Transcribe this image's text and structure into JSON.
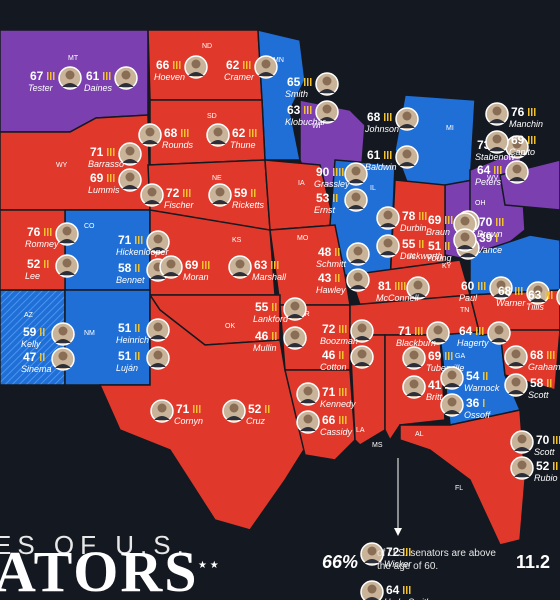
{
  "title": {
    "line1": "ES OF U.S.",
    "line2": "ATORS",
    "stars": "★ ★"
  },
  "stats": {
    "percent": "66%",
    "caption": "of U.S. senators are above the age of 60.",
    "secondary": "11.2"
  },
  "colors": {
    "republican": "#e0392b",
    "democrat": "#1f6fd6",
    "split": "#7b3fb0",
    "independent": "#4b95f0",
    "background": "#141820",
    "tick": "#f2c230"
  },
  "states": [
    {
      "abbr": "MT",
      "party": "split"
    },
    {
      "abbr": "ND",
      "party": "republican"
    },
    {
      "abbr": "MN",
      "party": "democrat"
    },
    {
      "abbr": "SD",
      "party": "republican"
    },
    {
      "abbr": "WI",
      "party": "split"
    },
    {
      "abbr": "MI",
      "party": "democrat"
    },
    {
      "abbr": "WY",
      "party": "republican"
    },
    {
      "abbr": "NE",
      "party": "republican"
    },
    {
      "abbr": "IA",
      "party": "republican"
    },
    {
      "abbr": "IL",
      "party": "democrat"
    },
    {
      "abbr": "OH",
      "party": "split"
    },
    {
      "abbr": "WV",
      "party": "split"
    },
    {
      "abbr": "CO",
      "party": "democrat"
    },
    {
      "abbr": "KS",
      "party": "republican"
    },
    {
      "abbr": "MO",
      "party": "republican"
    },
    {
      "abbr": "IN",
      "party": "republican"
    },
    {
      "abbr": "KY",
      "party": "republican"
    },
    {
      "abbr": "OK",
      "party": "republican"
    },
    {
      "abbr": "AR",
      "party": "republican"
    },
    {
      "abbr": "TN",
      "party": "republican"
    },
    {
      "abbr": "AZ",
      "party": "independent"
    },
    {
      "abbr": "NM",
      "party": "democrat"
    },
    {
      "abbr": "TX",
      "party": "republican"
    },
    {
      "abbr": "LA",
      "party": "republican"
    },
    {
      "abbr": "MS",
      "party": "republican"
    },
    {
      "abbr": "AL",
      "party": "republican"
    },
    {
      "abbr": "GA",
      "party": "democrat"
    },
    {
      "abbr": "FL",
      "party": "republican"
    }
  ],
  "senators": [
    {
      "name": "Tester",
      "age": "67",
      "state": "MT",
      "party": "democrat"
    },
    {
      "name": "Daines",
      "age": "61",
      "state": "MT",
      "party": "republican"
    },
    {
      "name": "Hoeven",
      "age": "66",
      "state": "ND",
      "party": "republican"
    },
    {
      "name": "Cramer",
      "age": "62",
      "state": "ND",
      "party": "republican"
    },
    {
      "name": "Smith",
      "age": "65",
      "state": "MN",
      "party": "democrat"
    },
    {
      "name": "Klobuchar",
      "age": "63",
      "state": "MN",
      "party": "democrat"
    },
    {
      "name": "Rounds",
      "age": "68",
      "state": "SD",
      "party": "republican"
    },
    {
      "name": "Thune",
      "age": "62",
      "state": "SD",
      "party": "republican"
    },
    {
      "name": "Johnson",
      "age": "68",
      "state": "WI",
      "party": "republican"
    },
    {
      "name": "Baldwin",
      "age": "61",
      "state": "WI",
      "party": "democrat"
    },
    {
      "name": "Stabenow",
      "age": "73",
      "state": "MI",
      "party": "democrat"
    },
    {
      "name": "Peters",
      "age": "64",
      "state": "MI",
      "party": "democrat"
    },
    {
      "name": "Manchin",
      "age": "76",
      "state": "WV",
      "party": "democrat"
    },
    {
      "name": "Capito",
      "age": "69",
      "state": "WV",
      "party": "republican"
    },
    {
      "name": "Barrasso",
      "age": "71",
      "state": "WY",
      "party": "republican"
    },
    {
      "name": "Lummis",
      "age": "69",
      "state": "WY",
      "party": "republican"
    },
    {
      "name": "Fischer",
      "age": "72",
      "state": "NE",
      "party": "republican"
    },
    {
      "name": "Ricketts",
      "age": "59",
      "state": "NE",
      "party": "republican"
    },
    {
      "name": "Grassley",
      "age": "90",
      "state": "IA",
      "party": "republican"
    },
    {
      "name": "Ernst",
      "age": "53",
      "state": "IA",
      "party": "republican"
    },
    {
      "name": "Durbin",
      "age": "78",
      "state": "IL",
      "party": "democrat"
    },
    {
      "name": "Duckworth",
      "age": "55",
      "state": "IL",
      "party": "democrat"
    },
    {
      "name": "Braun",
      "age": "69",
      "state": "IN",
      "party": "republican"
    },
    {
      "name": "Young",
      "age": "51",
      "state": "IN",
      "party": "republican"
    },
    {
      "name": "Brown",
      "age": "70",
      "state": "OH",
      "party": "democrat"
    },
    {
      "name": "Vance",
      "age": "39",
      "state": "OH",
      "party": "republican"
    },
    {
      "name": "Romney",
      "age": "76",
      "state": "UT",
      "party": "republican"
    },
    {
      "name": "Lee",
      "age": "52",
      "state": "UT",
      "party": "republican"
    },
    {
      "name": "Hickenlooper",
      "age": "71",
      "state": "CO",
      "party": "democrat"
    },
    {
      "name": "Bennet",
      "age": "58",
      "state": "CO",
      "party": "democrat"
    },
    {
      "name": "Moran",
      "age": "69",
      "state": "KS",
      "party": "republican"
    },
    {
      "name": "Marshall",
      "age": "63",
      "state": "KS",
      "party": "republican"
    },
    {
      "name": "Schmitt",
      "age": "48",
      "state": "MO",
      "party": "republican"
    },
    {
      "name": "Hawley",
      "age": "43",
      "state": "MO",
      "party": "republican"
    },
    {
      "name": "McConnell",
      "age": "81",
      "state": "KY",
      "party": "republican"
    },
    {
      "name": "Paul",
      "age": "60",
      "state": "KY",
      "party": "republican"
    },
    {
      "name": "Warner",
      "age": "68",
      "state": "VA",
      "party": "democrat"
    },
    {
      "name": "Lankford",
      "age": "55",
      "state": "OK",
      "party": "republican"
    },
    {
      "name": "Mullin",
      "age": "46",
      "state": "OK",
      "party": "republican"
    },
    {
      "name": "Boozman",
      "age": "72",
      "state": "AR",
      "party": "republican"
    },
    {
      "name": "Cotton",
      "age": "46",
      "state": "AR",
      "party": "republican"
    },
    {
      "name": "Blackburn",
      "age": "71",
      "state": "TN",
      "party": "republican"
    },
    {
      "name": "Hagerty",
      "age": "64",
      "state": "TN",
      "party": "republican"
    },
    {
      "name": "Tillis",
      "age": "63",
      "state": "NC",
      "party": "republican"
    },
    {
      "name": "Graham",
      "age": "68",
      "state": "SC",
      "party": "republican"
    },
    {
      "name": "Scott",
      "age": "58",
      "state": "SC",
      "party": "republican"
    },
    {
      "name": "Kelly",
      "age": "59",
      "state": "AZ",
      "party": "democrat"
    },
    {
      "name": "Sinema",
      "age": "47",
      "state": "AZ",
      "party": "independent"
    },
    {
      "name": "Heinrich",
      "age": "51",
      "state": "NM",
      "party": "democrat"
    },
    {
      "name": "Luján",
      "age": "51",
      "state": "NM",
      "party": "democrat"
    },
    {
      "name": "Tuberville",
      "age": "69",
      "state": "AL",
      "party": "republican"
    },
    {
      "name": "Britt",
      "age": "41",
      "state": "AL",
      "party": "republican"
    },
    {
      "name": "Warnock",
      "age": "54",
      "state": "GA",
      "party": "democrat"
    },
    {
      "name": "Ossoff",
      "age": "36",
      "state": "GA",
      "party": "democrat"
    },
    {
      "name": "Kennedy",
      "age": "71",
      "state": "LA",
      "party": "republican"
    },
    {
      "name": "Cassidy",
      "age": "66",
      "state": "LA",
      "party": "republican"
    },
    {
      "name": "Cornyn",
      "age": "71",
      "state": "TX",
      "party": "republican"
    },
    {
      "name": "Cruz",
      "age": "52",
      "state": "TX",
      "party": "republican"
    },
    {
      "name": "Wicker",
      "age": "72",
      "state": "MS",
      "party": "republican"
    },
    {
      "name": "Hyde-Smith",
      "age": "64",
      "state": "MS",
      "party": "republican"
    },
    {
      "name": "Scott",
      "age": "70",
      "state": "FL",
      "party": "republican"
    },
    {
      "name": "Rubio",
      "age": "52",
      "state": "FL",
      "party": "republican"
    }
  ]
}
